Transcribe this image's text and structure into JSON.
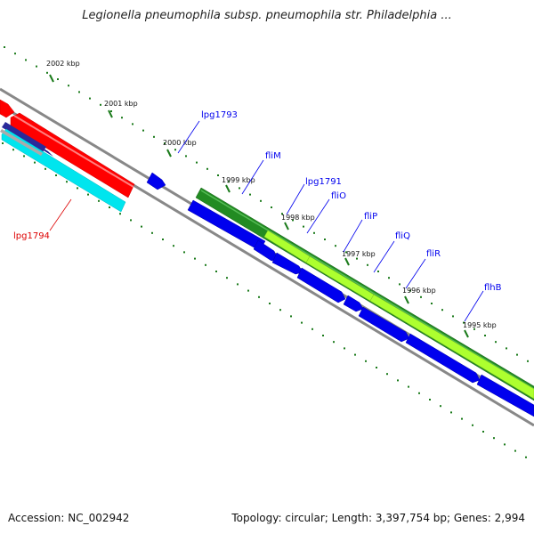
{
  "title": "Legionella pneumophila subsp. pneumophila str. Philadelphia ...",
  "footer": {
    "accession": "Accession: NC_002942",
    "summary": "Topology: circular; Length: 3,397,754 bp; Genes: 2,994"
  },
  "ticks": [
    {
      "label": "2002 kbp"
    },
    {
      "label": "2001 kbp"
    },
    {
      "label": "2000 kbp"
    },
    {
      "label": "1999 kbp"
    },
    {
      "label": "1998 kbp"
    },
    {
      "label": "1997 kbp"
    },
    {
      "label": "1996 kbp"
    },
    {
      "label": "1995 kbp"
    }
  ],
  "genes": [
    {
      "name": "lpg1793",
      "color": "#0000ee"
    },
    {
      "name": "fliM",
      "color": "#0000ee"
    },
    {
      "name": "lpg1791",
      "color": "#0000ee"
    },
    {
      "name": "fliO",
      "color": "#0000ee"
    },
    {
      "name": "fliP",
      "color": "#0000ee"
    },
    {
      "name": "fliQ",
      "color": "#0000ee"
    },
    {
      "name": "fliR",
      "color": "#0000ee"
    },
    {
      "name": "flhB",
      "color": "#0000ee"
    },
    {
      "name": "lpg1794",
      "color": "#dd0000"
    }
  ],
  "colors": {
    "cds": "#0000ee",
    "trna": "#ff0000",
    "rrna": "#00e5ee",
    "gene": "#228b22",
    "orf": "#adff2f",
    "backbone": "#888888",
    "ticks": "#1a7a1a"
  }
}
